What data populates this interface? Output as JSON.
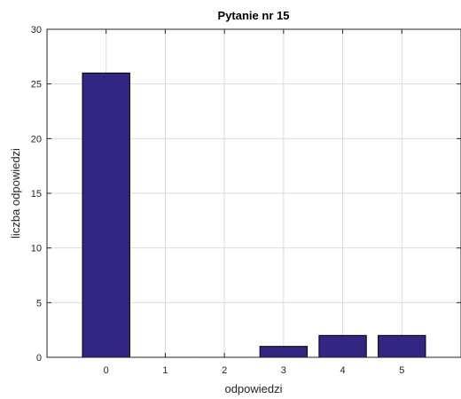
{
  "chart_data": {
    "type": "bar",
    "title": "Pytanie nr 15",
    "xlabel": "odpowiedzi",
    "ylabel": "liczba odpowiedzi",
    "categories": [
      "0",
      "1",
      "2",
      "3",
      "4",
      "5"
    ],
    "values": [
      26,
      0,
      0,
      1,
      2,
      2
    ],
    "ylim": [
      0,
      30
    ],
    "xlim": [
      -1,
      6
    ],
    "yticks": [
      0,
      5,
      10,
      15,
      20,
      25,
      30
    ],
    "grid": true,
    "legend": "none",
    "colors": {
      "bar_fill": "#312783",
      "bar_edge": "#000000",
      "axis": "#262626",
      "grid": "#dcdcdc",
      "background": "#ffffff"
    }
  }
}
